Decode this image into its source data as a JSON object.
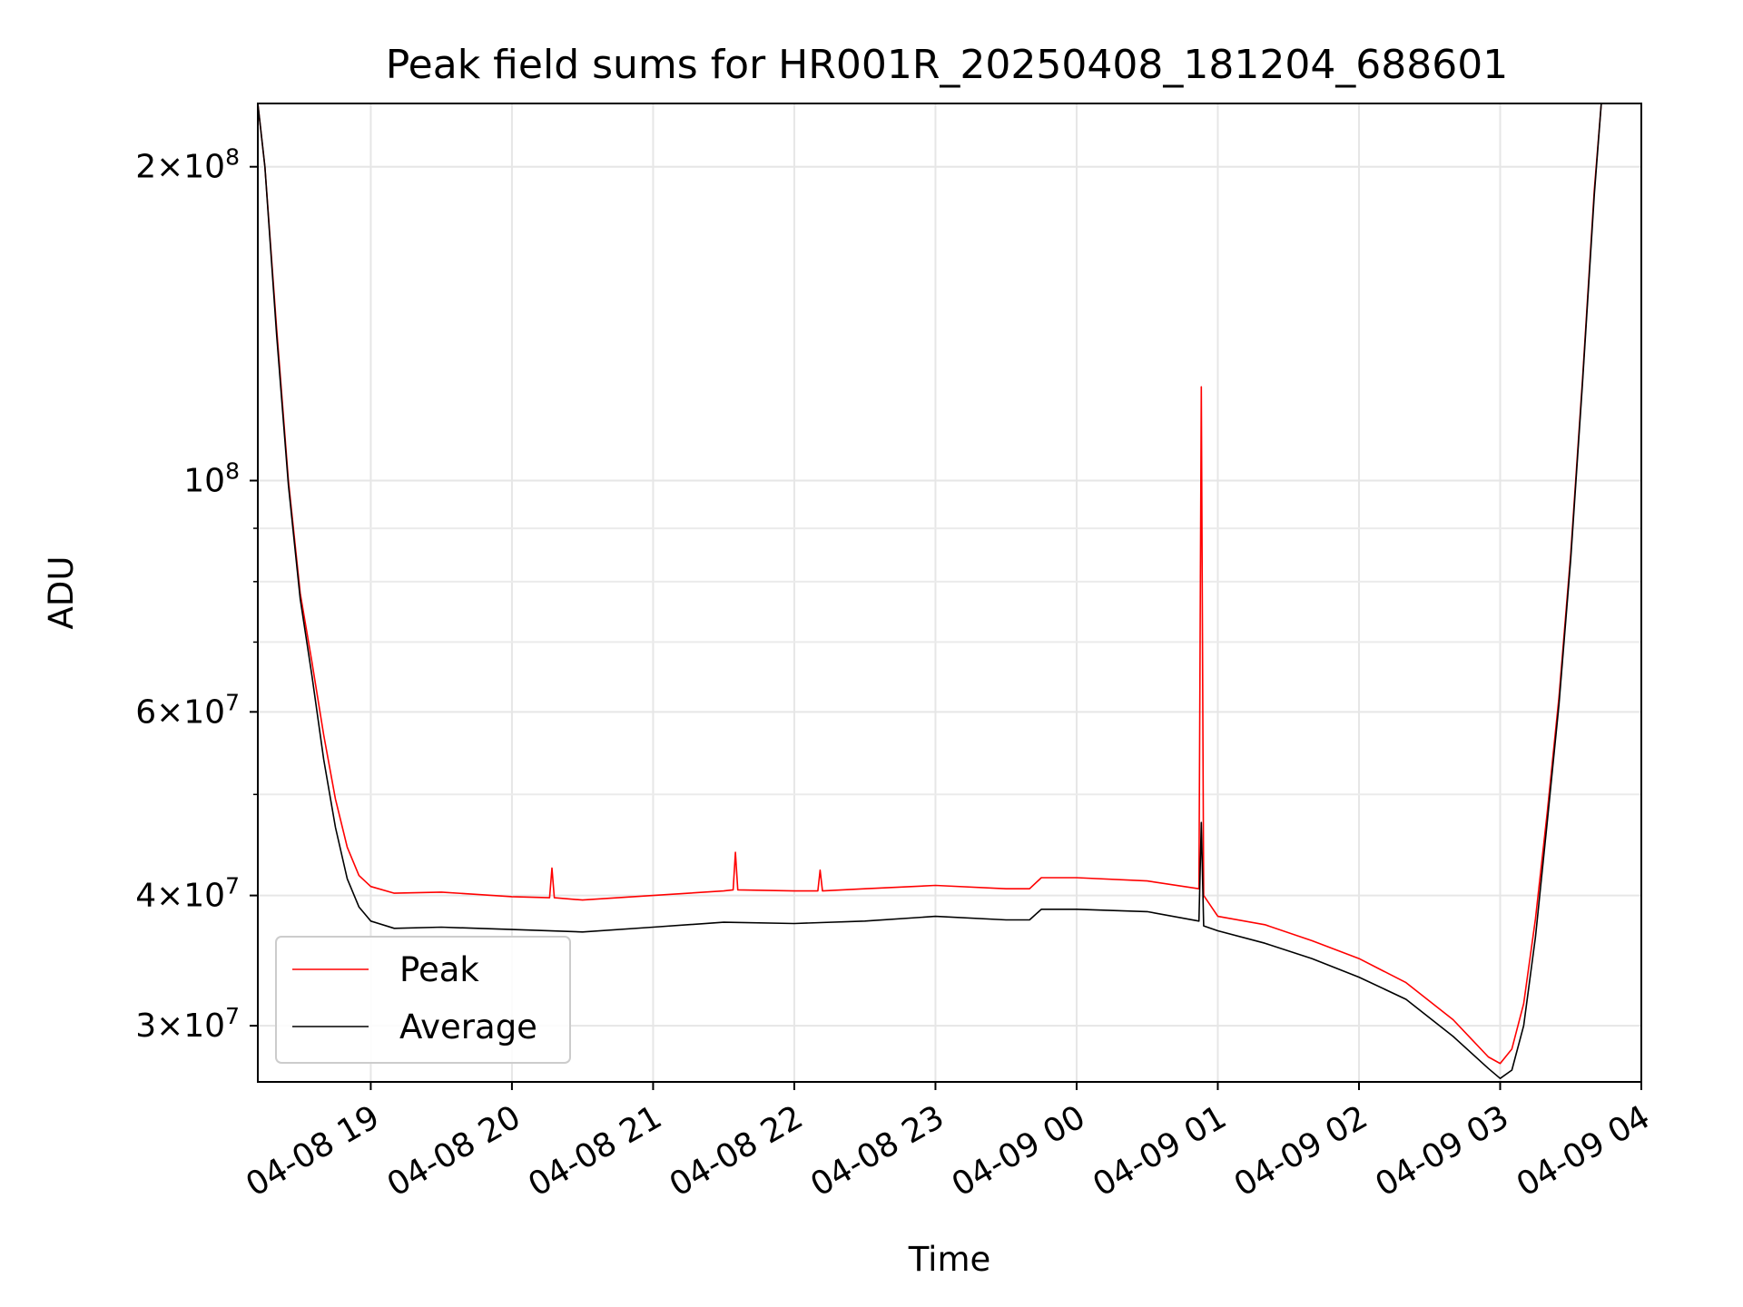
{
  "chart_data": {
    "type": "line",
    "title": "Peak field sums for HR001R_20250408_181204_688601",
    "xlabel": "Time",
    "ylabel": "ADU",
    "x_range": [
      "2025-04-08 18:12",
      "2025-04-09 04:00"
    ],
    "ylim": [
      26500000,
      230000000
    ],
    "y_scale": "log",
    "grid": true,
    "legend_position": "lower-left",
    "x_ticks": [
      {
        "time": "2025-04-08 19:00",
        "label": "04-08 19"
      },
      {
        "time": "2025-04-08 20:00",
        "label": "04-08 20"
      },
      {
        "time": "2025-04-08 21:00",
        "label": "04-08 21"
      },
      {
        "time": "2025-04-08 22:00",
        "label": "04-08 22"
      },
      {
        "time": "2025-04-08 23:00",
        "label": "04-08 23"
      },
      {
        "time": "2025-04-09 00:00",
        "label": "04-09 00"
      },
      {
        "time": "2025-04-09 01:00",
        "label": "04-09 01"
      },
      {
        "time": "2025-04-09 02:00",
        "label": "04-09 02"
      },
      {
        "time": "2025-04-09 03:00",
        "label": "04-09 03"
      },
      {
        "time": "2025-04-09 04:00",
        "label": "04-09 04"
      }
    ],
    "y_major_ticks": [
      {
        "value": 30000000,
        "mant": "3",
        "exp": "7"
      },
      {
        "value": 40000000,
        "mant": "4",
        "exp": "7"
      },
      {
        "value": 60000000,
        "mant": "6",
        "exp": "7"
      },
      {
        "value": 100000000,
        "mant": "",
        "exp": "8"
      },
      {
        "value": 200000000,
        "mant": "2",
        "exp": "8"
      }
    ],
    "y_minor_ticks": [
      50000000,
      70000000,
      80000000,
      90000000
    ],
    "series": [
      {
        "name": "Peak",
        "color": "#ff0000",
        "points": [
          [
            "2025-04-08 18:12",
            230000000
          ],
          [
            "2025-04-08 18:15",
            200000000
          ],
          [
            "2025-04-08 18:20",
            140000000
          ],
          [
            "2025-04-08 18:25",
            100000000
          ],
          [
            "2025-04-08 18:30",
            78000000
          ],
          [
            "2025-04-08 18:35",
            67000000
          ],
          [
            "2025-04-08 18:40",
            57000000
          ],
          [
            "2025-04-08 18:45",
            49500000
          ],
          [
            "2025-04-08 18:50",
            44500000
          ],
          [
            "2025-04-08 18:55",
            41800000
          ],
          [
            "2025-04-08 19:00",
            40800000
          ],
          [
            "2025-04-08 19:10",
            40200000
          ],
          [
            "2025-04-08 19:30",
            40300000
          ],
          [
            "2025-04-08 20:00",
            39900000
          ],
          [
            "2025-04-08 20:16",
            39800000
          ],
          [
            "2025-04-08 20:17",
            42500000
          ],
          [
            "2025-04-08 20:18",
            39800000
          ],
          [
            "2025-04-08 20:30",
            39600000
          ],
          [
            "2025-04-08 21:00",
            40000000
          ],
          [
            "2025-04-08 21:30",
            40400000
          ],
          [
            "2025-04-08 21:34",
            40500000
          ],
          [
            "2025-04-08 21:35",
            44000000
          ],
          [
            "2025-04-08 21:36",
            40500000
          ],
          [
            "2025-04-08 22:00",
            40400000
          ],
          [
            "2025-04-08 22:10",
            40400000
          ],
          [
            "2025-04-08 22:11",
            42300000
          ],
          [
            "2025-04-08 22:12",
            40400000
          ],
          [
            "2025-04-08 22:30",
            40600000
          ],
          [
            "2025-04-08 23:00",
            40900000
          ],
          [
            "2025-04-08 23:30",
            40600000
          ],
          [
            "2025-04-08 23:40",
            40600000
          ],
          [
            "2025-04-08 23:45",
            41600000
          ],
          [
            "2025-04-09 00:00",
            41600000
          ],
          [
            "2025-04-09 00:30",
            41300000
          ],
          [
            "2025-04-09 00:52",
            40600000
          ],
          [
            "2025-04-09 00:53",
            123000000
          ],
          [
            "2025-04-09 00:54",
            40000000
          ],
          [
            "2025-04-09 01:00",
            38200000
          ],
          [
            "2025-04-09 01:20",
            37500000
          ],
          [
            "2025-04-09 01:40",
            36200000
          ],
          [
            "2025-04-09 02:00",
            34800000
          ],
          [
            "2025-04-09 02:20",
            33000000
          ],
          [
            "2025-04-09 02:40",
            30400000
          ],
          [
            "2025-04-09 02:55",
            28000000
          ],
          [
            "2025-04-09 03:00",
            27600000
          ],
          [
            "2025-04-09 03:05",
            28500000
          ],
          [
            "2025-04-09 03:10",
            31500000
          ],
          [
            "2025-04-09 03:15",
            38000000
          ],
          [
            "2025-04-09 03:20",
            48000000
          ],
          [
            "2025-04-09 03:25",
            62000000
          ],
          [
            "2025-04-09 03:30",
            85000000
          ],
          [
            "2025-04-09 03:35",
            125000000
          ],
          [
            "2025-04-09 03:40",
            190000000
          ],
          [
            "2025-04-09 03:43",
            230000000
          ],
          [
            "2025-04-09 04:00",
            230000000
          ]
        ]
      },
      {
        "name": "Average",
        "color": "#000000",
        "points": [
          [
            "2025-04-08 18:12",
            230000000
          ],
          [
            "2025-04-08 18:15",
            200000000
          ],
          [
            "2025-04-08 18:20",
            138000000
          ],
          [
            "2025-04-08 18:25",
            99000000
          ],
          [
            "2025-04-08 18:30",
            77000000
          ],
          [
            "2025-04-08 18:35",
            65000000
          ],
          [
            "2025-04-08 18:40",
            54000000
          ],
          [
            "2025-04-08 18:45",
            46500000
          ],
          [
            "2025-04-08 18:50",
            41500000
          ],
          [
            "2025-04-08 18:55",
            39000000
          ],
          [
            "2025-04-08 19:00",
            37800000
          ],
          [
            "2025-04-08 19:10",
            37200000
          ],
          [
            "2025-04-08 19:30",
            37300000
          ],
          [
            "2025-04-08 20:00",
            37100000
          ],
          [
            "2025-04-08 20:30",
            36900000
          ],
          [
            "2025-04-08 21:00",
            37300000
          ],
          [
            "2025-04-08 21:30",
            37700000
          ],
          [
            "2025-04-08 22:00",
            37600000
          ],
          [
            "2025-04-08 22:30",
            37800000
          ],
          [
            "2025-04-08 23:00",
            38200000
          ],
          [
            "2025-04-08 23:30",
            37900000
          ],
          [
            "2025-04-08 23:40",
            37900000
          ],
          [
            "2025-04-08 23:45",
            38800000
          ],
          [
            "2025-04-09 00:00",
            38800000
          ],
          [
            "2025-04-09 00:30",
            38600000
          ],
          [
            "2025-04-09 00:52",
            37800000
          ],
          [
            "2025-04-09 00:53",
            47000000
          ],
          [
            "2025-04-09 00:54",
            37400000
          ],
          [
            "2025-04-09 01:00",
            37000000
          ],
          [
            "2025-04-09 01:20",
            36000000
          ],
          [
            "2025-04-09 01:40",
            34800000
          ],
          [
            "2025-04-09 02:00",
            33400000
          ],
          [
            "2025-04-09 02:20",
            31800000
          ],
          [
            "2025-04-09 02:40",
            29300000
          ],
          [
            "2025-04-09 02:55",
            27300000
          ],
          [
            "2025-04-09 03:00",
            26700000
          ],
          [
            "2025-04-09 03:05",
            27200000
          ],
          [
            "2025-04-09 03:10",
            30000000
          ],
          [
            "2025-04-09 03:15",
            36500000
          ],
          [
            "2025-04-09 03:20",
            47000000
          ],
          [
            "2025-04-09 03:25",
            61000000
          ],
          [
            "2025-04-09 03:30",
            84000000
          ],
          [
            "2025-04-09 03:35",
            124000000
          ],
          [
            "2025-04-09 03:40",
            188000000
          ],
          [
            "2025-04-09 03:43",
            230000000
          ],
          [
            "2025-04-09 04:00",
            230000000
          ]
        ]
      }
    ]
  }
}
